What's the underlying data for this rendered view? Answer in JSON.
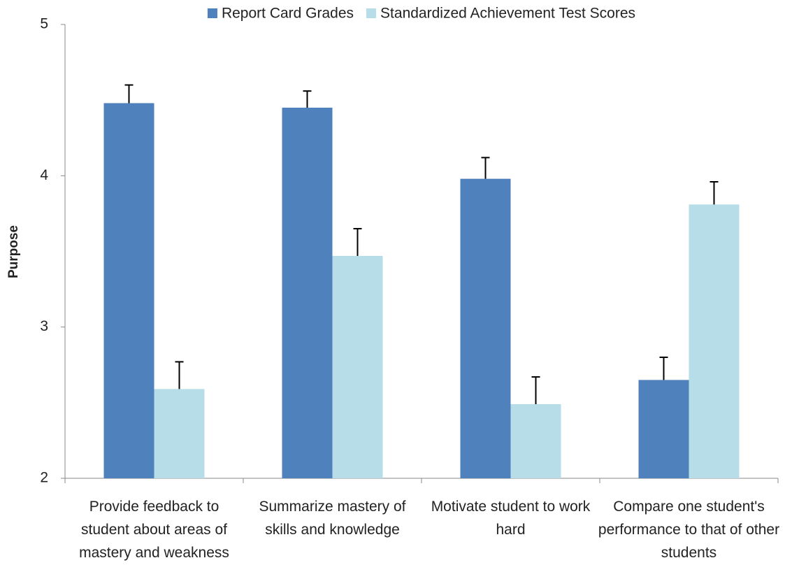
{
  "chart_data": {
    "type": "bar",
    "y_label": "Purpose",
    "categories": [
      "Provide feedback to student about areas of mastery and weakness",
      "Summarize mastery of skills and knowledge",
      "Motivate student to work hard",
      "Compare one student's performance to that of other students"
    ],
    "series": [
      {
        "name": "Report Card Grades",
        "color": "#4f81bd",
        "values": [
          4.48,
          4.45,
          3.98,
          2.65
        ],
        "errors": [
          0.12,
          0.11,
          0.14,
          0.15
        ]
      },
      {
        "name": "Standardized Achievement Test Scores",
        "color": "#b7dde8",
        "values": [
          2.59,
          3.47,
          2.49,
          3.81
        ],
        "errors": [
          0.18,
          0.18,
          0.18,
          0.15
        ]
      }
    ],
    "ylim": [
      2,
      5
    ],
    "yticks": [
      2,
      3,
      4,
      5
    ],
    "legend": "top"
  }
}
